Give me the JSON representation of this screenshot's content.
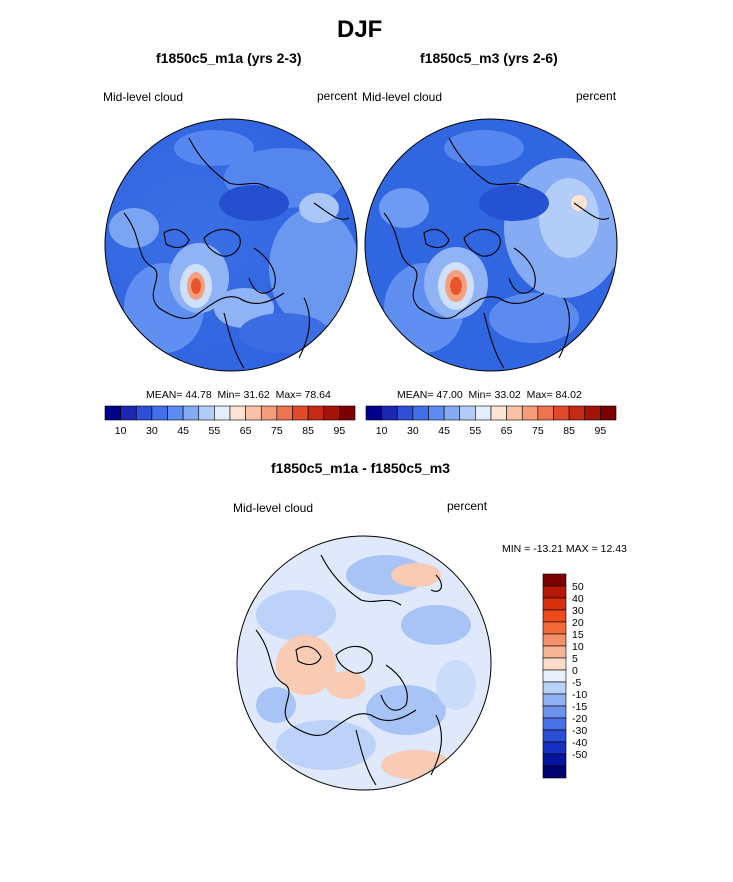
{
  "title": "DJF",
  "panels": [
    {
      "title": "f1850c5_m1a (yrs 2-3)",
      "left_label": "Mid-level cloud",
      "right_label": "percent",
      "stats": {
        "mean_label": "MEAN=",
        "mean": "44.78",
        "min_label": "Min=",
        "min": "31.62",
        "max_label": "Max=",
        "max": "78.64"
      }
    },
    {
      "title": "f1850c5_m3 (yrs 2-6)",
      "left_label": "Mid-level cloud",
      "right_label": "percent",
      "stats": {
        "mean_label": "MEAN=",
        "mean": "47.00",
        "min_label": "Min=",
        "min": "33.02",
        "max_label": "Max=",
        "max": "84.02"
      }
    },
    {
      "title": "f1850c5_m1a - f1850c5_m3",
      "left_label": "Mid-level cloud",
      "right_label": "percent",
      "minmax": "MIN = -13.21 MAX =  12.43"
    }
  ],
  "colorbar_top": {
    "colors": [
      "#00008b",
      "#1b27b0",
      "#2f4fd8",
      "#4170e8",
      "#5d8cf0",
      "#86abf5",
      "#b3cdf9",
      "#e2eefc",
      "#fde3d4",
      "#f9c1a6",
      "#f49c7c",
      "#ee744f",
      "#e04a2a",
      "#c52a14",
      "#a31408",
      "#7d0000"
    ],
    "labels": [
      "10",
      "30",
      "45",
      "55",
      "65",
      "75",
      "85",
      "95"
    ]
  },
  "colorbar_diff": {
    "colors": [
      "#7d0000",
      "#b71806",
      "#d7300e",
      "#ee4a1c",
      "#f26a3a",
      "#f4906a",
      "#f8b596",
      "#fcdcc8",
      "#e8f0fc",
      "#bad1f8",
      "#8fb1f3",
      "#6e93ee",
      "#4a70e5",
      "#2b4ed8",
      "#1730c2",
      "#05139e",
      "#00006e"
    ],
    "labels": [
      "50",
      "40",
      "30",
      "20",
      "15",
      "10",
      "5",
      "0",
      "-5",
      "-10",
      "-15",
      "-20",
      "-30",
      "-40",
      "-50"
    ]
  },
  "legend_colors": {
    "map_base_top": "#2f62e0",
    "map_light_blue": "#8fb3f4",
    "map_pale": "#cfe0fb",
    "map_red": "#e8552c",
    "map_orange": "#f4a07e",
    "diff_base": "#dfe9fb",
    "diff_blue": "#a8c3f6",
    "diff_red": "#f9cbb5"
  }
}
